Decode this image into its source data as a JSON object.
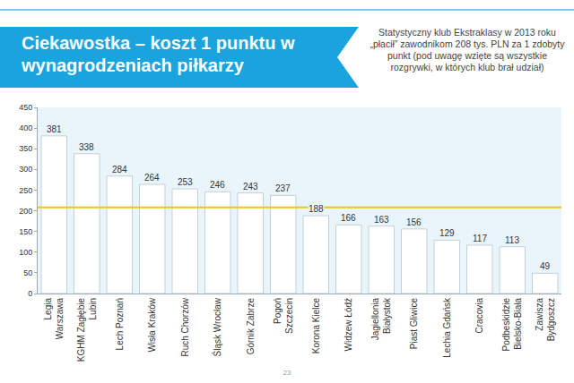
{
  "chart_data": {
    "type": "bar",
    "title": "Ciekawostka – koszt 1 punktu w wynagrodzeniach piłkarzy",
    "subtitle": "Statystyczny klub Ekstraklasy w 2013 roku „płacił” zawodnikom 208 tys. PLN za 1 zdobyty punkt (pod uwagę wzięte są wszystkie rozgrywki, w których klub brał udział)",
    "categories": [
      "Legia Warszawa",
      "KGHM Zagłębie Lubin",
      "Lech Poznań",
      "Wisła Kraków",
      "Ruch Chorzów",
      "Śląsk Wrocław",
      "Górnik Zabrze",
      "Pogoń Szczecin",
      "Korona Kielce",
      "Widzew Łódź",
      "Jagiellonia Białystok",
      "Piast Gliwice",
      "Lechia Gdańsk",
      "Cracovia",
      "Podbeskidzie Bielsko-Biała",
      "Zawisza Bydgoszcz"
    ],
    "values": [
      381,
      338,
      284,
      264,
      253,
      246,
      243,
      237,
      188,
      166,
      163,
      156,
      129,
      117,
      113,
      49
    ],
    "color": "#ffffff",
    "reference_line": {
      "value": 208
    },
    "ylim": [
      0,
      450
    ],
    "yticks": [
      0,
      50,
      100,
      150,
      200,
      250,
      300,
      350,
      400,
      450
    ],
    "grid": false,
    "data_labels": true
  },
  "page_number": "23"
}
